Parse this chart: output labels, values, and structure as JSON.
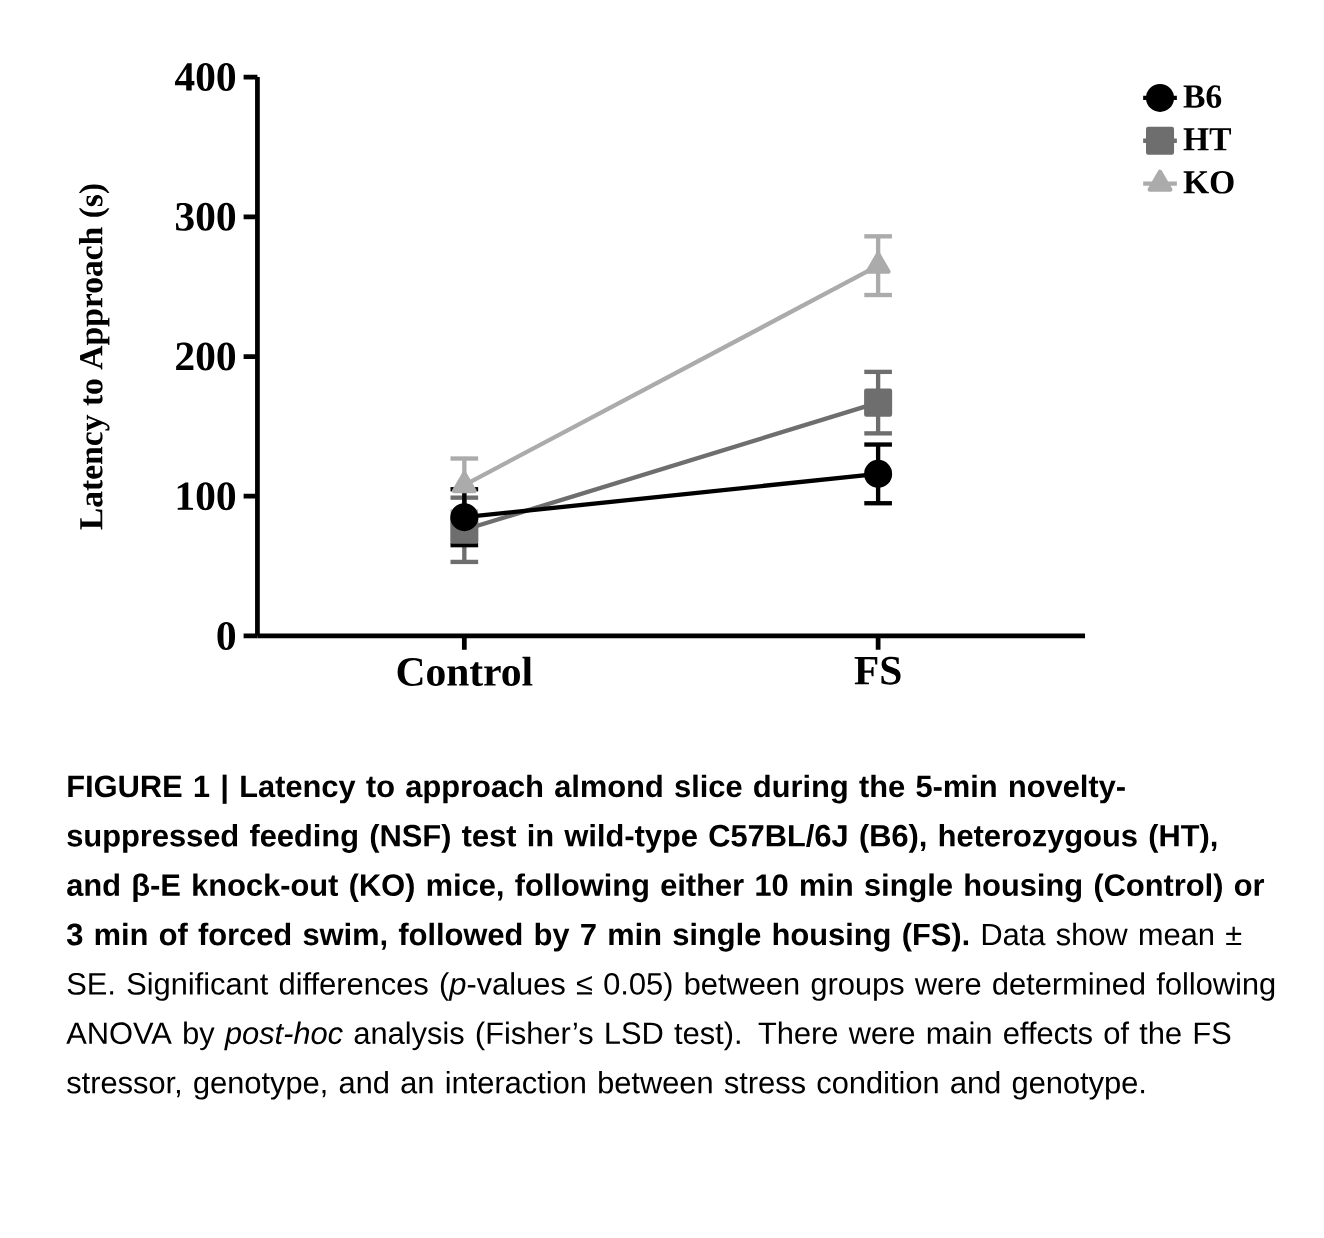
{
  "chart_data": {
    "type": "line",
    "ylabel": "Latency to Approach (s)",
    "categories": [
      "Control",
      "FS"
    ],
    "ylim": [
      0,
      400
    ],
    "yticks": [
      0,
      100,
      200,
      300,
      400
    ],
    "legend": "top right",
    "series": [
      {
        "name": "B6",
        "color": "#000000",
        "marker": "circle",
        "values": [
          85,
          116
        ],
        "errors": [
          20,
          21
        ]
      },
      {
        "name": "HT",
        "color": "#6e6e6e",
        "marker": "square",
        "values": [
          76,
          167
        ],
        "errors": [
          23,
          22
        ]
      },
      {
        "name": "KO",
        "color": "#ababab",
        "marker": "triangle",
        "values": [
          108,
          265
        ],
        "errors": [
          19,
          21
        ]
      }
    ],
    "annotations": [
      "**FIGURE 1 | Latency to approach almond slice during the 5-min novelty-suppressed feeding (NSF) test in wild-type C57BL/6J (B6), heterozygous (HT), and β-E knock-out (KO) mice, following either 10 min single housing (Control) or 3 min of forced swim, followed by 7 min single housing (FS).** Data show mean ± SE. Significant differences (*p*-values ≤ 0.05) between groups were determined following ANOVA by *post-hoc* analysis (Fisher’s LSD test). There were main effects of the FS stressor, genotype, and an interaction between stress condition and genotype."
    ]
  }
}
